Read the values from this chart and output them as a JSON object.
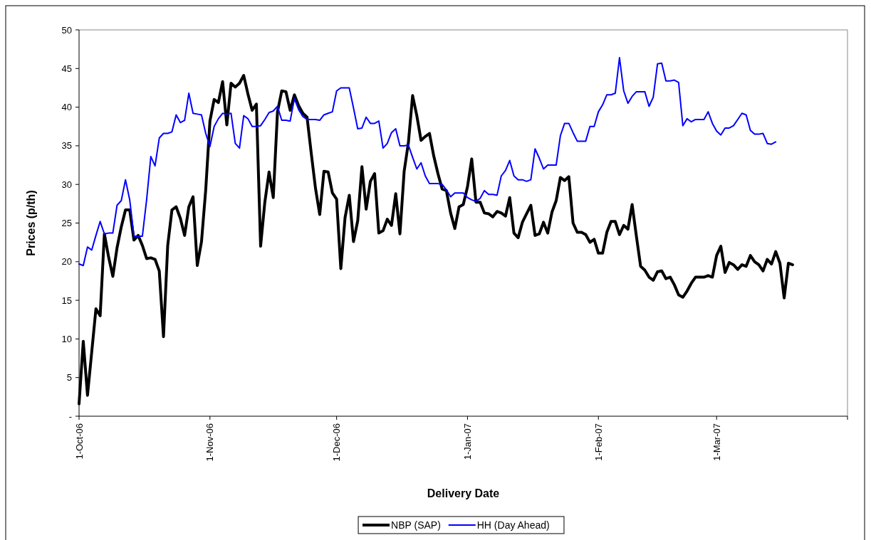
{
  "chart_data": {
    "type": "line",
    "xlabel": "Delivery Date",
    "ylabel": "Prices (p/th)",
    "legend": "bottom",
    "marker": "none",
    "grid": false,
    "xlim": [
      "2006-10-01",
      "2007-04-01"
    ],
    "xticks": [
      {
        "value": "2006-10-01",
        "label": "1-Oct-06"
      },
      {
        "value": "2006-11-01",
        "label": "1-Nov-06"
      },
      {
        "value": "2006-12-01",
        "label": "1-Dec-06"
      },
      {
        "value": "2007-01-01",
        "label": "1-Jan-07"
      },
      {
        "value": "2007-02-01",
        "label": "1-Feb-07"
      },
      {
        "value": "2007-03-01",
        "label": "1-Mar-07"
      },
      {
        "value": "2007-04-01",
        "label": null
      }
    ],
    "ylim": [
      0,
      50
    ],
    "yticks": [
      {
        "value": 0,
        "label": "-"
      },
      5,
      10,
      15,
      20,
      25,
      30,
      35,
      40,
      45,
      50
    ],
    "x": [
      "2006-10-01",
      "2006-10-02",
      "2006-10-03",
      "2006-10-04",
      "2006-10-05",
      "2006-10-06",
      "2006-10-07",
      "2006-10-08",
      "2006-10-09",
      "2006-10-10",
      "2006-10-11",
      "2006-10-12",
      "2006-10-13",
      "2006-10-14",
      "2006-10-15",
      "2006-10-16",
      "2006-10-17",
      "2006-10-18",
      "2006-10-19",
      "2006-10-20",
      "2006-10-21",
      "2006-10-22",
      "2006-10-23",
      "2006-10-24",
      "2006-10-25",
      "2006-10-26",
      "2006-10-27",
      "2006-10-28",
      "2006-10-29",
      "2006-10-30",
      "2006-10-31",
      "2006-11-01",
      "2006-11-02",
      "2006-11-03",
      "2006-11-04",
      "2006-11-05",
      "2006-11-06",
      "2006-11-07",
      "2006-11-08",
      "2006-11-09",
      "2006-11-10",
      "2006-11-11",
      "2006-11-12",
      "2006-11-13",
      "2006-11-14",
      "2006-11-15",
      "2006-11-16",
      "2006-11-17",
      "2006-11-18",
      "2006-11-19",
      "2006-11-20",
      "2006-11-21",
      "2006-11-22",
      "2006-11-23",
      "2006-11-24",
      "2006-11-25",
      "2006-11-26",
      "2006-11-27",
      "2006-11-28",
      "2006-11-29",
      "2006-11-30",
      "2006-12-01",
      "2006-12-02",
      "2006-12-03",
      "2006-12-04",
      "2006-12-05",
      "2006-12-06",
      "2006-12-07",
      "2006-12-08",
      "2006-12-09",
      "2006-12-10",
      "2006-12-11",
      "2006-12-12",
      "2006-12-13",
      "2006-12-14",
      "2006-12-15",
      "2006-12-16",
      "2006-12-17",
      "2006-12-18",
      "2006-12-19",
      "2006-12-20",
      "2006-12-21",
      "2006-12-22",
      "2006-12-23",
      "2006-12-24",
      "2006-12-25",
      "2006-12-26",
      "2006-12-27",
      "2006-12-28",
      "2006-12-29",
      "2006-12-30",
      "2006-12-31",
      "2007-01-01",
      "2007-01-02",
      "2007-01-03",
      "2007-01-04",
      "2007-01-05",
      "2007-01-06",
      "2007-01-07",
      "2007-01-08",
      "2007-01-09",
      "2007-01-10",
      "2007-01-11",
      "2007-01-12",
      "2007-01-13",
      "2007-01-14",
      "2007-01-15",
      "2007-01-16",
      "2007-01-17",
      "2007-01-18",
      "2007-01-19",
      "2007-01-20",
      "2007-01-21",
      "2007-01-22",
      "2007-01-23",
      "2007-01-24",
      "2007-01-25",
      "2007-01-26",
      "2007-01-27",
      "2007-01-28",
      "2007-01-29",
      "2007-01-30",
      "2007-01-31",
      "2007-02-01",
      "2007-02-02",
      "2007-02-03",
      "2007-02-04",
      "2007-02-05",
      "2007-02-06",
      "2007-02-07",
      "2007-02-08",
      "2007-02-09",
      "2007-02-10",
      "2007-02-11",
      "2007-02-12",
      "2007-02-13",
      "2007-02-14",
      "2007-02-15",
      "2007-02-16",
      "2007-02-17",
      "2007-02-18",
      "2007-02-19",
      "2007-02-20",
      "2007-02-21",
      "2007-02-22",
      "2007-02-23",
      "2007-02-24",
      "2007-02-25",
      "2007-02-26",
      "2007-02-27",
      "2007-02-28",
      "2007-03-01",
      "2007-03-02",
      "2007-03-03",
      "2007-03-04",
      "2007-03-05",
      "2007-03-06",
      "2007-03-07",
      "2007-03-08",
      "2007-03-09",
      "2007-03-10",
      "2007-03-11",
      "2007-03-12",
      "2007-03-13",
      "2007-03-14",
      "2007-03-15",
      "2007-03-16",
      "2007-03-17",
      "2007-03-18",
      "2007-03-19"
    ],
    "series": [
      {
        "name": "NBP (SAP)",
        "color": "#000000",
        "values": [
          1.6,
          9.7,
          2.7,
          8.3,
          13.9,
          13.0,
          23.6,
          20.6,
          18.1,
          21.8,
          24.5,
          26.7,
          26.7,
          22.8,
          23.4,
          22.1,
          20.4,
          20.5,
          20.3,
          18.8,
          10.3,
          22.1,
          26.7,
          27.1,
          25.6,
          23.4,
          27.1,
          28.4,
          19.5,
          22.6,
          29.3,
          38.2,
          41.0,
          40.6,
          43.3,
          37.7,
          43.1,
          42.6,
          43.1,
          44.1,
          41.7,
          39.6,
          40.4,
          22.0,
          27.7,
          31.6,
          28.3,
          39.4,
          42.1,
          42.0,
          39.6,
          41.6,
          40.2,
          39.2,
          38.7,
          34.0,
          29.5,
          26.1,
          31.7,
          31.6,
          28.9,
          28.1,
          19.1,
          25.7,
          28.6,
          22.6,
          25.3,
          32.3,
          26.8,
          30.4,
          31.4,
          23.7,
          24.0,
          25.5,
          24.7,
          28.8,
          23.6,
          31.7,
          35.4,
          41.5,
          38.9,
          35.7,
          36.2,
          36.6,
          33.7,
          31.4,
          29.4,
          29.2,
          26.3,
          24.3,
          27.1,
          27.4,
          29.7,
          33.3,
          27.7,
          27.7,
          26.3,
          26.2,
          25.8,
          26.5,
          26.3,
          25.9,
          28.3,
          23.7,
          23.1,
          25.1,
          26.2,
          27.3,
          23.4,
          23.6,
          25.1,
          23.7,
          26.4,
          27.9,
          30.9,
          30.5,
          31.0,
          25.0,
          23.8,
          23.8,
          23.5,
          22.5,
          22.9,
          21.1,
          21.1,
          23.8,
          25.2,
          25.2,
          23.5,
          24.7,
          24.2,
          27.4,
          23.3,
          19.4,
          18.9,
          18.0,
          17.6,
          18.7,
          18.8,
          17.8,
          18.0,
          17.0,
          15.7,
          15.4,
          16.2,
          17.2,
          18.0,
          18.0,
          18.0,
          18.2,
          18.0,
          20.8,
          22.0,
          18.6,
          19.9,
          19.6,
          19.0,
          19.6,
          19.4,
          20.8,
          20.0,
          19.6,
          18.8,
          20.3,
          19.7,
          21.3,
          19.8,
          15.3,
          19.8,
          19.6
        ]
      },
      {
        "name": "HH (Day Ahead)",
        "color": "#0000ff",
        "values": [
          19.7,
          19.5,
          21.9,
          21.5,
          23.4,
          25.2,
          23.6,
          23.7,
          23.7,
          27.3,
          27.9,
          30.6,
          28.0,
          23.3,
          23.3,
          23.3,
          28.0,
          33.6,
          32.4,
          36.0,
          36.6,
          36.6,
          36.8,
          39.0,
          38.0,
          38.3,
          41.8,
          39.2,
          39.1,
          39.0,
          36.6,
          34.9,
          37.5,
          38.5,
          39.2,
          39.1,
          39.2,
          35.3,
          34.7,
          38.9,
          38.5,
          37.5,
          37.5,
          37.6,
          38.4,
          39.3,
          39.5,
          40.1,
          38.3,
          38.3,
          38.2,
          41.1,
          39.7,
          38.8,
          38.4,
          38.4,
          38.4,
          38.3,
          39.0,
          39.2,
          39.4,
          42.1,
          42.5,
          42.5,
          42.5,
          39.9,
          37.2,
          37.3,
          38.7,
          37.9,
          37.9,
          38.2,
          34.7,
          35.3,
          36.7,
          37.2,
          35.0,
          35.0,
          35.1,
          33.5,
          32.0,
          32.8,
          31.1,
          30.1,
          30.1,
          30.1,
          30.0,
          29.3,
          28.4,
          28.9,
          28.9,
          28.9,
          28.3,
          28.0,
          27.8,
          28.2,
          29.2,
          28.7,
          28.7,
          28.6,
          31.1,
          31.8,
          33.1,
          31.1,
          30.6,
          30.6,
          30.4,
          30.6,
          34.6,
          33.4,
          32.0,
          32.5,
          32.5,
          32.5,
          36.3,
          37.9,
          37.9,
          36.7,
          35.6,
          35.6,
          35.6,
          37.5,
          37.5,
          39.4,
          40.3,
          41.6,
          41.6,
          41.8,
          46.4,
          42.1,
          40.5,
          41.4,
          42.0,
          42.0,
          42.0,
          40.1,
          41.3,
          45.6,
          45.7,
          43.4,
          43.4,
          43.5,
          43.2,
          37.6,
          38.5,
          38.1,
          38.4,
          38.4,
          38.4,
          39.4,
          37.9,
          36.9,
          36.4,
          37.3,
          37.3,
          37.6,
          38.4,
          39.2,
          39.0,
          37.0,
          36.5,
          36.5,
          36.6,
          35.3,
          35.2,
          35.5,
          null,
          null,
          null,
          null
        ]
      }
    ]
  }
}
